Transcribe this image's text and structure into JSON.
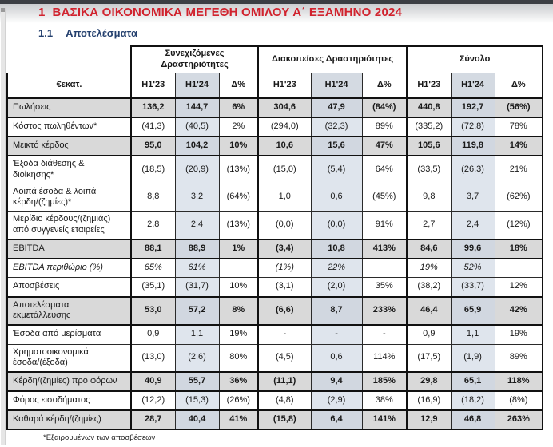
{
  "page": {
    "heading_number": "1",
    "heading_text": "ΒΑΣΙΚΑ ΟΙΚΟΝΟΜΙΚΑ ΜΕΓΕΘΗ ΟΜΙΛΟΥ Α΄ ΕΞΑΜΗΝΟ 2024",
    "section_number": "1.1",
    "section_title": "Αποτελέσματα",
    "footnote": "*Εξαιρουμένων των αποσβέσεων"
  },
  "colors": {
    "title_red": "#d1232e",
    "section_navy": "#24406e",
    "gray_row": "#d9d9d9",
    "h124_highlight": "#dfe5ed",
    "h124_highlight_dark": "#d1d7e0",
    "h124_header_highlight": "#d4dae2"
  },
  "table": {
    "unit_label": "€εκατ.",
    "groups": [
      "Συνεχιζόμενες Δραστηριότητες",
      "Διακοπείσες Δραστηριότητες",
      "Σύνολο"
    ],
    "period_headers": [
      "Η1'23",
      "Η1'24",
      "Δ%"
    ],
    "rows": [
      {
        "label": "Πωλήσεις",
        "style": "strong",
        "values": [
          "136,2",
          "144,7",
          "6%",
          "304,6",
          "47,9",
          "(84%)",
          "440,8",
          "192,7",
          "(56%)"
        ]
      },
      {
        "label": "Κόστος πωληθέντων*",
        "style": "plain",
        "values": [
          "(41,3)",
          "(40,5)",
          "2%",
          "(294,0)",
          "(32,3)",
          "89%",
          "(335,2)",
          "(72,8)",
          "78%"
        ]
      },
      {
        "label": "Μεικτό κέρδος",
        "style": "strong",
        "values": [
          "95,0",
          "104,2",
          "10%",
          "10,6",
          "15,6",
          "47%",
          "105,6",
          "119,8",
          "14%"
        ]
      },
      {
        "label": "Έξοδα διάθεσης & διοίκησης*",
        "style": "plain",
        "values": [
          "(18,5)",
          "(20,9)",
          "(13%)",
          "(15,0)",
          "(5,4)",
          "64%",
          "(33,5)",
          "(26,3)",
          "21%"
        ]
      },
      {
        "label": "Λοιπά έσοδα & λοιπά κέρδη/(ζημίες)*",
        "style": "plain",
        "values": [
          "8,8",
          "3,2",
          "(64%)",
          "1,0",
          "0,6",
          "(45%)",
          "9,8",
          "3,7",
          "(62%)"
        ]
      },
      {
        "label": "Μερίδιο κέρδους/(ζημιάς) από συγγενείς εταιρείες",
        "style": "plain",
        "values": [
          "2,8",
          "2,4",
          "(13%)",
          "(0,0)",
          "(0,0)",
          "91%",
          "2,7",
          "2,4",
          "(12%)"
        ]
      },
      {
        "label": "EBITDA",
        "style": "strong",
        "values": [
          "88,1",
          "88,9",
          "1%",
          "(3,4)",
          "10,8",
          "413%",
          "84,6",
          "99,6",
          "18%"
        ]
      },
      {
        "label": "EBITDA περιθώριο (%)",
        "style": "italic",
        "values": [
          "65%",
          "61%",
          "",
          "(1%)",
          "22%",
          "",
          "19%",
          "52%",
          ""
        ]
      },
      {
        "label": "Αποσβέσεις",
        "style": "plain",
        "values": [
          "(35,1)",
          "(31,7)",
          "10%",
          "(3,1)",
          "(2,0)",
          "35%",
          "(38,2)",
          "(33,7)",
          "12%"
        ]
      },
      {
        "label": "Αποτελέσματα εκμετάλλευσης",
        "style": "strong",
        "values": [
          "53,0",
          "57,2",
          "8%",
          "(6,6)",
          "8,7",
          "233%",
          "46,4",
          "65,9",
          "42%"
        ]
      },
      {
        "label": "Έσοδα από μερίσματα",
        "style": "plain",
        "values": [
          "0,9",
          "1,1",
          "19%",
          "-",
          "-",
          "-",
          "0,9",
          "1,1",
          "19%"
        ]
      },
      {
        "label": "Χρηματοοικονομικά έσοδα/(έξοδα)",
        "style": "plain",
        "values": [
          "(13,0)",
          "(2,6)",
          "80%",
          "(4,5)",
          "0,6",
          "114%",
          "(17,5)",
          "(1,9)",
          "89%"
        ]
      },
      {
        "label": "Κέρδη/(ζημίες) προ φόρων",
        "style": "strong",
        "values": [
          "40,9",
          "55,7",
          "36%",
          "(11,1)",
          "9,4",
          "185%",
          "29,8",
          "65,1",
          "118%"
        ]
      },
      {
        "label": "Φόρος εισοδήματος",
        "style": "plain",
        "values": [
          "(12,2)",
          "(15,3)",
          "(26%)",
          "(4,8)",
          "(2,9)",
          "38%",
          "(16,9)",
          "(18,2)",
          "(8%)"
        ]
      },
      {
        "label": "Καθαρά κέρδη/(ζημίες)",
        "style": "strong",
        "values": [
          "28,7",
          "40,4",
          "41%",
          "(15,8)",
          "6,4",
          "141%",
          "12,9",
          "46,8",
          "263%"
        ]
      }
    ]
  }
}
